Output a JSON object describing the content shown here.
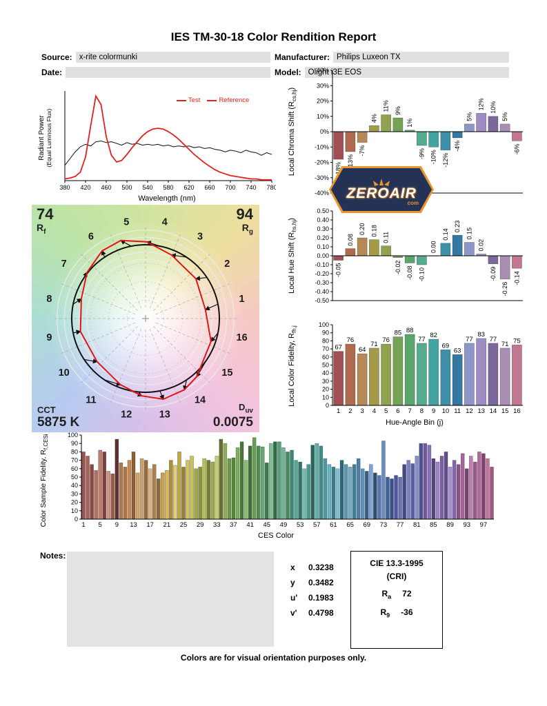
{
  "page": {
    "title": "IES TM-30-18 Color Rendition Report",
    "footer": "Colors are for visual orientation purposes only."
  },
  "header": {
    "source_label": "Source:",
    "source_value": "x-rite colormunki",
    "date_label": "Date:",
    "date_value": "",
    "manufacturer_label": "Manufacturer:",
    "manufacturer_value": "Philips Luxeon TX",
    "model_label": "Model:",
    "model_value": "Olight i3E EOS"
  },
  "notes_label": "Notes:",
  "watermark": {
    "text": "ZEROAIR",
    "suffix": "com"
  },
  "bin_colors": [
    "#a14f54",
    "#b06a4e",
    "#b58858",
    "#a39a4a",
    "#8fa34e",
    "#75a356",
    "#5aa56c",
    "#55ab90",
    "#45a3a3",
    "#3e90a8",
    "#3579a3",
    "#8e96c8",
    "#9e8dc4",
    "#7c689c",
    "#a98db3",
    "#c27791"
  ],
  "chart_data": [
    {
      "id": "spd",
      "type": "line",
      "xlabel": "Wavelength (nm)",
      "ylabel_line1": "Radiant Power",
      "ylabel_line2": "(Equal Luminous Flux)",
      "xlim": [
        380,
        780
      ],
      "xtick_step": 40,
      "xticks": [
        380,
        420,
        460,
        500,
        540,
        580,
        620,
        660,
        700,
        740,
        780
      ],
      "legend": [
        {
          "label": "Test",
          "color": "#e02020"
        },
        {
          "label": "Reference",
          "color": "#e02020"
        }
      ],
      "x": [
        380,
        390,
        400,
        410,
        420,
        430,
        440,
        450,
        460,
        470,
        480,
        490,
        500,
        510,
        520,
        530,
        540,
        550,
        560,
        570,
        580,
        590,
        600,
        610,
        620,
        630,
        640,
        650,
        660,
        670,
        680,
        690,
        700,
        710,
        720,
        730,
        740,
        750,
        760,
        770,
        780
      ],
      "series": [
        {
          "name": "Test",
          "color": "#e02020",
          "y": [
            0.02,
            0.03,
            0.05,
            0.1,
            0.28,
            0.65,
            1.0,
            0.9,
            0.52,
            0.3,
            0.22,
            0.24,
            0.31,
            0.39,
            0.46,
            0.53,
            0.58,
            0.61,
            0.62,
            0.61,
            0.58,
            0.54,
            0.49,
            0.43,
            0.37,
            0.31,
            0.26,
            0.21,
            0.17,
            0.13,
            0.1,
            0.08,
            0.06,
            0.05,
            0.04,
            0.03,
            0.02,
            0.02,
            0.01,
            0.01,
            0.01
          ]
        },
        {
          "name": "Reference",
          "color": "#222222",
          "y": [
            0.18,
            0.26,
            0.34,
            0.4,
            0.43,
            0.41,
            0.46,
            0.47,
            0.45,
            0.46,
            0.44,
            0.42,
            0.45,
            0.43,
            0.44,
            0.42,
            0.43,
            0.42,
            0.43,
            0.41,
            0.42,
            0.4,
            0.41,
            0.4,
            0.41,
            0.39,
            0.4,
            0.38,
            0.39,
            0.37,
            0.36,
            0.34,
            0.36,
            0.35,
            0.33,
            0.36,
            0.34,
            0.33,
            0.3,
            0.33,
            0.31
          ]
        }
      ]
    },
    {
      "id": "chroma_shift",
      "type": "bar",
      "ylabel_pre": "Local Chroma Shift (R",
      "ylabel_sub": "cs,hj",
      "ylabel_post": ")",
      "ylim": [
        -40,
        40
      ],
      "ytick_step": 10,
      "unit": "%",
      "categories": [
        1,
        2,
        3,
        4,
        5,
        6,
        7,
        8,
        9,
        10,
        11,
        12,
        13,
        14,
        15,
        16
      ],
      "values": [
        -18,
        -13,
        -7,
        4,
        11,
        9,
        1,
        -9,
        -10,
        -12,
        -4,
        5,
        12,
        10,
        5,
        -6
      ]
    },
    {
      "id": "hue_shift",
      "type": "bar",
      "ylabel_pre": "Local Hue Shift (R",
      "ylabel_sub": "hs,hj",
      "ylabel_post": ")",
      "ylim": [
        -0.5,
        0.5
      ],
      "ytick_step": 0.1,
      "categories": [
        1,
        2,
        3,
        4,
        5,
        6,
        7,
        8,
        9,
        10,
        11,
        12,
        13,
        14,
        15,
        16
      ],
      "values": [
        -0.05,
        0.08,
        0.2,
        0.18,
        0.11,
        -0.02,
        -0.08,
        -0.1,
        0.0,
        0.14,
        0.23,
        0.15,
        0.02,
        -0.09,
        -0.26,
        -0.14
      ]
    },
    {
      "id": "local_fidelity",
      "type": "bar",
      "ylabel_pre": "Local Color Fidelity, R",
      "ylabel_sub": "fh,j",
      "ylabel_post": "",
      "xlabel": "Hue-Angle Bin (j)",
      "ylim": [
        0,
        100
      ],
      "ytick_step": 10,
      "categories": [
        1,
        2,
        3,
        4,
        5,
        6,
        7,
        8,
        9,
        10,
        11,
        12,
        13,
        14,
        15,
        16
      ],
      "values": [
        67,
        76,
        64,
        71,
        76,
        85,
        88,
        77,
        82,
        69,
        63,
        77,
        83,
        77,
        71,
        75
      ]
    },
    {
      "id": "ces_fidelity",
      "type": "bar",
      "ylabel_pre": "Color Sample Fidelity, R",
      "ylabel_sub": "f,CESi",
      "ylabel_post": "",
      "xlabel": "CES Color",
      "ylim": [
        0,
        100
      ],
      "ytick_step": 10,
      "xtick_labels": [
        1,
        5,
        9,
        13,
        17,
        21,
        25,
        29,
        33,
        37,
        41,
        45,
        49,
        53,
        57,
        61,
        65,
        69,
        73,
        77,
        81,
        85,
        89,
        93,
        97
      ],
      "values": [
        80,
        75,
        65,
        58,
        82,
        80,
        57,
        54,
        95,
        67,
        62,
        70,
        80,
        55,
        72,
        70,
        60,
        65,
        48,
        55,
        58,
        70,
        64,
        80,
        62,
        70,
        75,
        60,
        62,
        72,
        70,
        68,
        75,
        95,
        90,
        72,
        73,
        85,
        92,
        70,
        87,
        97,
        87,
        86,
        67,
        90,
        92,
        92,
        85,
        80,
        82,
        70,
        68,
        60,
        65,
        88,
        90,
        87,
        72,
        65,
        62,
        60,
        70,
        65,
        62,
        65,
        72,
        60,
        57,
        65,
        55,
        52,
        93,
        50,
        48,
        52,
        50,
        65,
        70,
        66,
        75,
        90,
        90,
        88,
        72,
        68,
        75,
        80,
        62,
        70,
        65,
        78,
        60,
        75,
        68,
        80,
        78,
        72,
        62
      ],
      "colors": [
        "#9c5352",
        "#aa5f55",
        "#8b4646",
        "#b56f62",
        "#c07d6c",
        "#7d3f3c",
        "#cf9480",
        "#a3584e",
        "#5f3030",
        "#a97a58",
        "#b5743f",
        "#c98a50",
        "#8f5f33",
        "#d9a468",
        "#caa273",
        "#9a6b3a",
        "#e0b585",
        "#b08050",
        "#8a6a30",
        "#c9a347",
        "#d9b85c",
        "#a98f35",
        "#e3cc7a",
        "#bfa83f",
        "#94803a",
        "#d6c060",
        "#c2c45e",
        "#a3a842",
        "#8a9238",
        "#b8bf55",
        "#747e2e",
        "#9aa84a",
        "#c5cf70",
        "#676f2a",
        "#8fae57",
        "#6f9a45",
        "#57883a",
        "#7fb060",
        "#4a7a34",
        "#8cc070",
        "#3f6e30",
        "#68a052",
        "#4f8f56",
        "#67a873",
        "#3a7a48",
        "#7fbf92",
        "#2f6e44",
        "#55a078",
        "#6fb593",
        "#428a62",
        "#3a8a78",
        "#55a896",
        "#2f7568",
        "#6fbfae",
        "#47998c",
        "#2a665e",
        "#5fb2a8",
        "#3d8c85",
        "#4a9aa8",
        "#66b5c2",
        "#357f8f",
        "#7fc4d2",
        "#2a6a7a",
        "#579ab0",
        "#6faec6",
        "#417f98",
        "#4a7fa8",
        "#638fc0",
        "#35608c",
        "#7fa3d4",
        "#2a4f78",
        "#5578b0",
        "#6a8cc6",
        "#3f6098",
        "#37508f",
        "#50549f",
        "#6a6fb5",
        "#424a85",
        "#7e82c5",
        "#595fa5",
        "#8a8fd0",
        "#4d4f92",
        "#6f5a9f",
        "#8a72b8",
        "#55447f",
        "#9c85c8",
        "#7a5fa8",
        "#614c8c",
        "#a890d2",
        "#8468ad",
        "#8f5088",
        "#a8649c",
        "#7a4072",
        "#c07fae",
        "#95588a",
        "#b06a9e",
        "#853f6f",
        "#c4739a",
        "#a05680"
      ]
    },
    {
      "id": "color_vector_graphic",
      "type": "radar",
      "rf_value": "74",
      "rf_label": "R",
      "rf_sub": "f",
      "rg_value": "94",
      "rg_label": "R",
      "rg_sub": "g",
      "cct_label": "CCT",
      "cct_value": "5875 K",
      "duv_label": "D",
      "duv_sub": "uv",
      "duv_value": "0.0075",
      "bins": [
        1,
        2,
        3,
        4,
        5,
        6,
        7,
        8,
        9,
        10,
        11,
        12,
        13,
        14,
        15,
        16
      ]
    }
  ],
  "metrics": {
    "chromaticity": [
      {
        "label": "x",
        "value": "0.3238"
      },
      {
        "label": "y",
        "value": "0.3482"
      },
      {
        "label": "u'",
        "value": "0.1983"
      },
      {
        "label": "v'",
        "value": "0.4798"
      }
    ],
    "cie_box": {
      "title": "CIE 13.3-1995",
      "subtitle": "(CRI)",
      "rows": [
        {
          "label": "R",
          "sub": "a",
          "value": "72"
        },
        {
          "label": "R",
          "sub": "9",
          "value": "-36"
        }
      ]
    }
  }
}
